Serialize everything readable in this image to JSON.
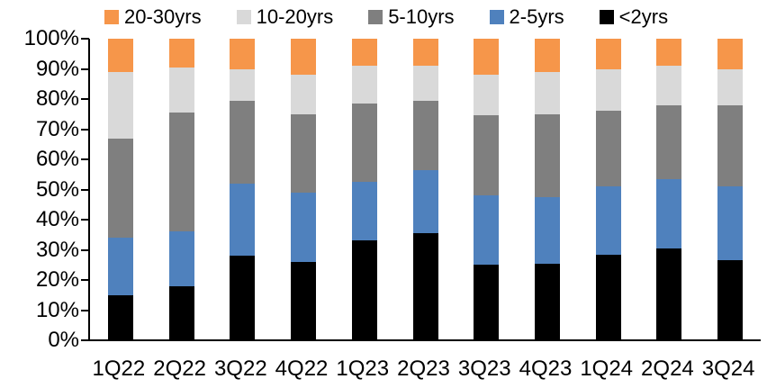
{
  "legend": {
    "items": [
      {
        "label": "20-30yrs",
        "color": "#F6964A"
      },
      {
        "label": "10-20yrs",
        "color": "#D9D9D9"
      },
      {
        "label": "5-10yrs",
        "color": "#7F7F7F"
      },
      {
        "label": "2-5yrs",
        "color": "#4F81BD"
      },
      {
        "label": "<2yrs",
        "color": "#000000"
      }
    ]
  },
  "y_axis": {
    "tick_labels": [
      "100%",
      "90%",
      "80%",
      "70%",
      "60%",
      "50%",
      "40%",
      "30%",
      "20%",
      "10%",
      "0%"
    ]
  },
  "chart_data": {
    "type": "bar",
    "stacked": true,
    "stacked_100_percent": true,
    "title": "",
    "xlabel": "",
    "ylabel": "",
    "ylim": [
      0,
      100
    ],
    "grid": false,
    "legend_position": "top",
    "categories": [
      "1Q22",
      "2Q22",
      "3Q22",
      "4Q22",
      "1Q23",
      "2Q23",
      "3Q23",
      "4Q23",
      "1Q24",
      "2Q24",
      "3Q24"
    ],
    "series": [
      {
        "name": "<2yrs",
        "color": "#000000",
        "values": [
          15,
          18,
          28,
          26,
          33,
          35.5,
          25,
          25.5,
          28.5,
          30.5,
          26.5
        ]
      },
      {
        "name": "2-5yrs",
        "color": "#4F81BD",
        "values": [
          19,
          18,
          24,
          23,
          19.5,
          21,
          23,
          22,
          22.5,
          23,
          24.5
        ]
      },
      {
        "name": "5-10yrs",
        "color": "#7F7F7F",
        "values": [
          33,
          39.5,
          27.5,
          26,
          26,
          23,
          26.5,
          27.5,
          25,
          24.5,
          27
        ]
      },
      {
        "name": "10-20yrs",
        "color": "#D9D9D9",
        "values": [
          22,
          15,
          10.5,
          13,
          12.5,
          11.5,
          13.5,
          14,
          14,
          13,
          12
        ]
      },
      {
        "name": "20-30yrs",
        "color": "#F6964A",
        "values": [
          11,
          9.5,
          10,
          12,
          9,
          9,
          12,
          11,
          10,
          9,
          10
        ]
      }
    ]
  }
}
